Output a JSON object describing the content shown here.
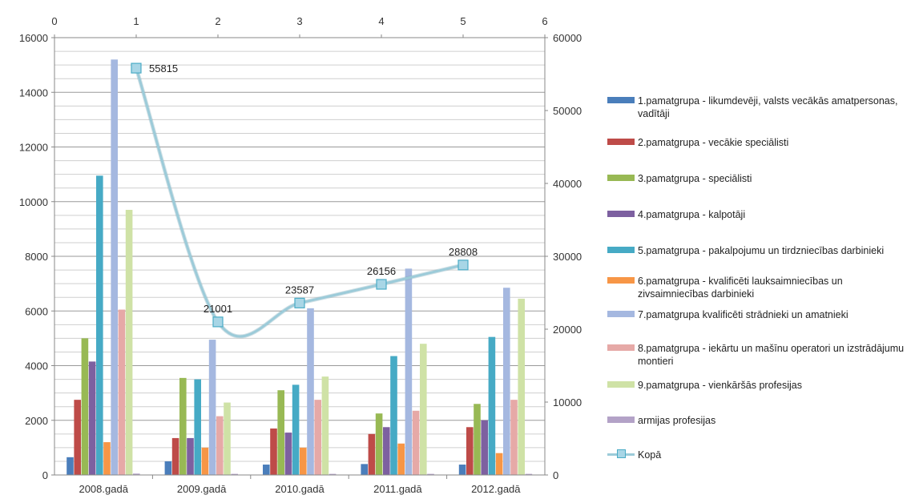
{
  "chart_data": {
    "type": "bar",
    "categories": [
      "2008.gadā",
      "2009.gadā",
      "2010.gadā",
      "2011.gadā",
      "2012.gadā"
    ],
    "ylim": [
      0,
      16000
    ],
    "yticks": [
      "0",
      "2000",
      "4000",
      "6000",
      "8000",
      "10000",
      "12000",
      "14000",
      "16000"
    ],
    "y2lim": [
      0,
      60000
    ],
    "y2ticks": [
      "0",
      "10000",
      "20000",
      "30000",
      "40000",
      "50000",
      "60000"
    ],
    "x2lim": [
      0,
      6
    ],
    "x2ticks": [
      "0",
      "1",
      "2",
      "3",
      "4",
      "5",
      "6"
    ],
    "grid": true,
    "legend_position": "right",
    "series": [
      {
        "name": "1.pamatgrupa - likumdevēji, valsts vecākās amatpersonas, vadītāji",
        "color": "#4a7ebb",
        "values": [
          650,
          500,
          380,
          400,
          380
        ]
      },
      {
        "name": "2.pamatgrupa - vecākie speciālisti",
        "color": "#be4b48",
        "values": [
          2750,
          1350,
          1700,
          1500,
          1750
        ]
      },
      {
        "name": "3.pamatgrupa - speciālisti",
        "color": "#98b954",
        "values": [
          5000,
          3550,
          3100,
          2250,
          2600
        ]
      },
      {
        "name": "4.pamatgrupa - kalpotāji",
        "color": "#7d60a0",
        "values": [
          4150,
          1350,
          1550,
          1750,
          2000
        ]
      },
      {
        "name": "5.pamatgrupa - pakalpojumu un tirdzniecības darbinieki",
        "color": "#46aac5",
        "values": [
          10950,
          3500,
          3300,
          4350,
          5050
        ]
      },
      {
        "name": "6.pamatgrupa - kvalificēti lauksaimniecības un zivsaimniecības darbinieki",
        "color": "#f79646",
        "values": [
          1200,
          1000,
          1000,
          1150,
          800
        ]
      },
      {
        "name": "7.pamatgrupa kvalificēti strādnieki un amatnieki",
        "color": "#a5b8e0",
        "values": [
          15200,
          4950,
          6100,
          7550,
          6850
        ]
      },
      {
        "name": "8.pamatgrupa - iekārtu un mašīnu operatori un izstrādājumu montieri",
        "color": "#e6a9a7",
        "values": [
          6050,
          2150,
          2750,
          2350,
          2750
        ]
      },
      {
        "name": "9.pamatgrupa - vienkāršās profesijas",
        "color": "#cfe2a6",
        "values": [
          9700,
          2650,
          3600,
          4800,
          6450
        ]
      },
      {
        "name": "armijas profesijas",
        "color": "#b3a2c7",
        "values": [
          50,
          40,
          40,
          40,
          40
        ]
      }
    ],
    "line_series": {
      "name": "Kopā",
      "color": "#9ccbd9",
      "x": [
        1,
        2,
        3,
        4,
        5
      ],
      "values": [
        55815,
        21001,
        23587,
        26156,
        28808
      ],
      "labels": [
        "55815",
        "21001",
        "23587",
        "26156",
        "28808"
      ]
    }
  }
}
